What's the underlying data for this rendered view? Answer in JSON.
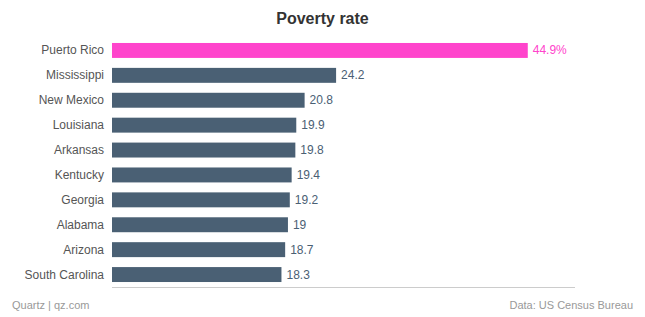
{
  "chart_data": {
    "type": "bar",
    "orientation": "horizontal",
    "title": "Poverty rate",
    "categories": [
      "Puerto Rico",
      "Mississippi",
      "New Mexico",
      "Louisiana",
      "Arkansas",
      "Kentucky",
      "Georgia",
      "Alabama",
      "Arizona",
      "South Carolina"
    ],
    "values": [
      44.9,
      24.2,
      20.8,
      19.9,
      19.8,
      19.4,
      19.2,
      19,
      18.7,
      18.3
    ],
    "value_labels": [
      "44.9%",
      "24.2",
      "20.8",
      "19.9",
      "19.8",
      "19.4",
      "19.2",
      "19",
      "18.7",
      "18.3"
    ],
    "colors": [
      "#ff44cc",
      "#4a6074",
      "#4a6074",
      "#4a6074",
      "#4a6074",
      "#4a6074",
      "#4a6074",
      "#4a6074",
      "#4a6074",
      "#4a6074"
    ],
    "xlim": [
      0,
      50
    ],
    "data_labels": true,
    "tick_labels": "y",
    "grid": false,
    "annotations": [
      "Quartz | qz.com",
      "Data: US Census Bureau"
    ]
  }
}
